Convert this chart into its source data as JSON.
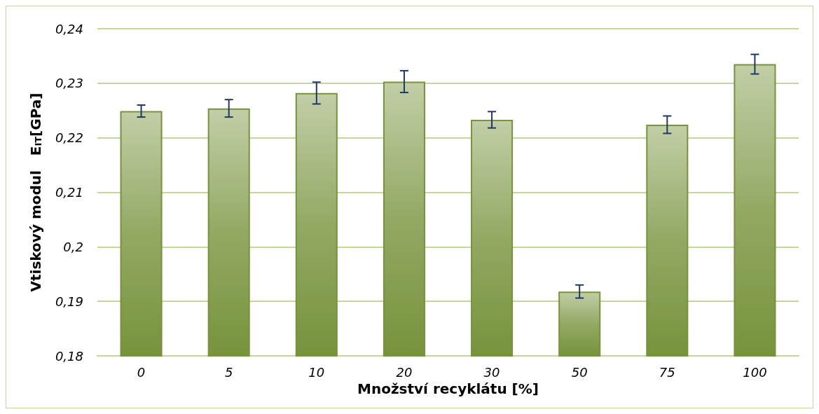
{
  "chart_data": {
    "type": "bar",
    "xlabel": "Množství recyklátu [%]",
    "ylabel": "Vtiskový modul   E$_{IT}$[GPa]",
    "categories": [
      "0",
      "5",
      "10",
      "20",
      "30",
      "50",
      "75",
      "100"
    ],
    "values": [
      0.2249,
      0.2254,
      0.2282,
      0.2303,
      0.2233,
      0.1918,
      0.2224,
      0.2335
    ],
    "errors": [
      0.0011,
      0.0016,
      0.002,
      0.002,
      0.0015,
      0.0012,
      0.0016,
      0.0018
    ],
    "color": "#77933c",
    "ylim": [
      0.18,
      0.24
    ],
    "yticks": [
      {
        "value": 0.18,
        "label": "0,18"
      },
      {
        "value": 0.19,
        "label": "0,19"
      },
      {
        "value": 0.2,
        "label": "0,2"
      },
      {
        "value": 0.21,
        "label": "0,21"
      },
      {
        "value": 0.22,
        "label": "0,22"
      },
      {
        "value": 0.23,
        "label": "0,23"
      },
      {
        "value": 0.24,
        "label": "0,24"
      }
    ],
    "grid": "y"
  }
}
